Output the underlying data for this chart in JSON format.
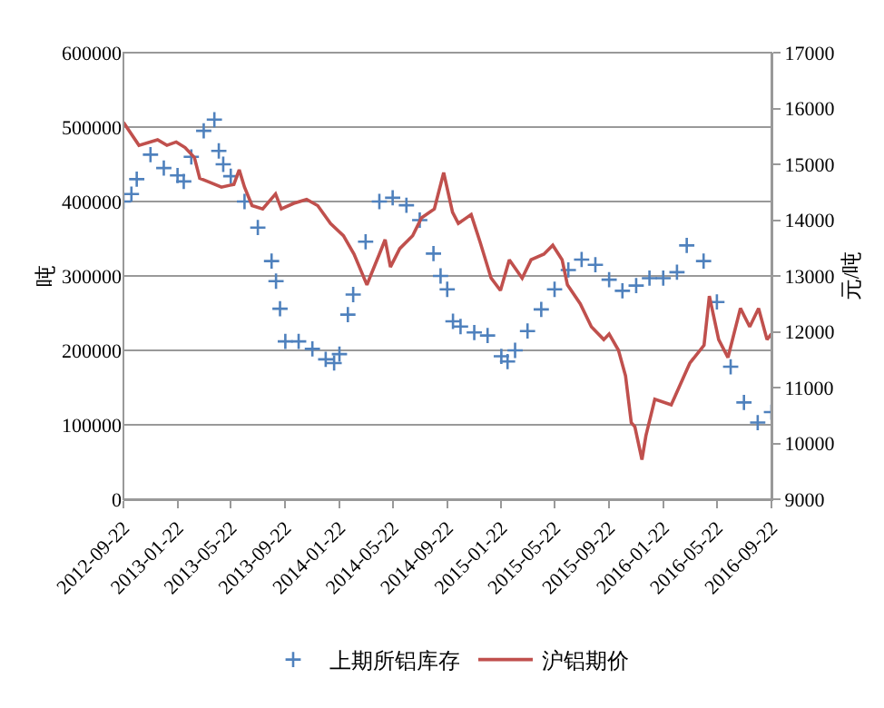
{
  "chart_data": {
    "type": "line",
    "ylabel": "吨",
    "y2label": "元/吨",
    "xlim": [
      "2012-09-22",
      "2016-09-22"
    ],
    "xticks": [
      {
        "value": "2012-09-22",
        "label": "2012-09-22"
      },
      {
        "value": "2013-01-22",
        "label": "2013-01-22"
      },
      {
        "value": "2013-05-22",
        "label": "2013-05-22"
      },
      {
        "value": "2013-09-22",
        "label": "2013-09-22"
      },
      {
        "value": "2014-01-22",
        "label": "2014-01-22"
      },
      {
        "value": "2014-05-22",
        "label": "2014-05-22"
      },
      {
        "value": "2014-09-22",
        "label": "2014-09-22"
      },
      {
        "value": "2015-01-22",
        "label": "2015-01-22"
      },
      {
        "value": "2015-05-22",
        "label": "2015-05-22"
      },
      {
        "value": "2015-09-22",
        "label": "2015-09-22"
      },
      {
        "value": "2016-01-22",
        "label": "2016-01-22"
      },
      {
        "value": "2016-05-22",
        "label": "2016-05-22"
      },
      {
        "value": "2016-09-22",
        "label": "2016-09-22"
      }
    ],
    "ylim": [
      0,
      600000
    ],
    "yticks": [
      0,
      100000,
      200000,
      300000,
      400000,
      500000,
      600000
    ],
    "y2lim": [
      9000,
      17000
    ],
    "y2ticks": [
      9000,
      10000,
      11000,
      12000,
      13000,
      14000,
      15000,
      16000,
      17000
    ],
    "grid": "y",
    "legend": "bottom",
    "series": [
      {
        "name": "上期所铝库存",
        "type": "scatter",
        "marker": "cross",
        "color": "#4f81bd",
        "x": [
          "2012-09-22",
          "2012-10-10",
          "2012-10-22",
          "2012-11-22",
          "2012-12-22",
          "2013-01-22",
          "2013-02-05",
          "2013-02-22",
          "2013-03-22",
          "2013-04-15",
          "2013-04-25",
          "2013-05-05",
          "2013-05-22",
          "2013-06-22",
          "2013-07-22",
          "2013-08-22",
          "2013-09-01",
          "2013-09-10",
          "2013-09-22",
          "2013-10-22",
          "2013-11-22",
          "2013-12-22",
          "2014-01-10",
          "2014-01-22",
          "2014-02-10",
          "2014-02-22",
          "2014-03-22",
          "2014-04-22",
          "2014-05-22",
          "2014-06-22",
          "2014-07-22",
          "2014-08-22",
          "2014-09-07",
          "2014-09-22",
          "2014-10-05",
          "2014-10-22",
          "2014-11-22",
          "2014-12-22",
          "2015-01-22",
          "2015-02-05",
          "2015-02-22",
          "2015-03-22",
          "2015-04-22",
          "2015-05-22",
          "2015-06-22",
          "2015-07-22",
          "2015-08-22",
          "2015-09-22",
          "2015-10-22",
          "2015-11-22",
          "2015-12-22",
          "2016-01-22",
          "2016-02-22",
          "2016-03-15",
          "2016-04-22",
          "2016-05-22",
          "2016-06-22",
          "2016-07-22",
          "2016-08-22",
          "2016-09-22"
        ],
        "values": [
          400000,
          410000,
          430000,
          463000,
          445000,
          435000,
          427000,
          460000,
          495000,
          510000,
          468000,
          450000,
          434000,
          400000,
          365000,
          320000,
          293000,
          256000,
          212000,
          212000,
          202000,
          188000,
          183000,
          195000,
          248000,
          275000,
          346000,
          400000,
          405000,
          395000,
          375000,
          330000,
          300000,
          282000,
          239000,
          232000,
          224000,
          220000,
          192000,
          185000,
          200000,
          226000,
          255000,
          282000,
          308000,
          322000,
          315000,
          295000,
          280000,
          287000,
          297000,
          297000,
          305000,
          341000,
          320000,
          265000,
          178000,
          130000,
          103000,
          117000
        ]
      },
      {
        "name": "沪铝期价",
        "axis": "y2",
        "marker": "none",
        "color": "#c0504d",
        "x": [
          "2012-09-22",
          "2012-10-27",
          "2012-12-08",
          "2012-12-29",
          "2013-01-19",
          "2013-02-08",
          "2013-03-01",
          "2013-03-13",
          "2013-04-01",
          "2013-05-01",
          "2013-05-29",
          "2013-06-10",
          "2013-06-22",
          "2013-07-09",
          "2013-08-02",
          "2013-08-31",
          "2013-09-13",
          "2013-10-11",
          "2013-11-09",
          "2013-12-04",
          "2014-01-02",
          "2014-01-31",
          "2014-02-24",
          "2014-03-25",
          "2014-04-02",
          "2014-04-22",
          "2014-05-05",
          "2014-05-17",
          "2014-06-07",
          "2014-07-06",
          "2014-07-26",
          "2014-08-24",
          "2014-09-14",
          "2014-10-04",
          "2014-10-17",
          "2014-11-15",
          "2014-12-05",
          "2014-12-30",
          "2015-01-20",
          "2015-02-09",
          "2015-03-10",
          "2015-03-30",
          "2015-04-28",
          "2015-05-18",
          "2015-06-08",
          "2015-06-20",
          "2015-07-19",
          "2015-08-13",
          "2015-09-10",
          "2015-09-22",
          "2015-10-13",
          "2015-10-29",
          "2015-11-11",
          "2015-11-19",
          "2015-12-05",
          "2015-12-14",
          "2016-01-03",
          "2016-02-09",
          "2016-03-22",
          "2016-04-23",
          "2016-05-05",
          "2016-05-26",
          "2016-06-16",
          "2016-07-14",
          "2016-08-04",
          "2016-08-24",
          "2016-09-12",
          "2016-09-22"
        ],
        "values": [
          15750,
          15340,
          15440,
          15340,
          15400,
          15300,
          15120,
          14750,
          14690,
          14590,
          14640,
          14900,
          14590,
          14260,
          14200,
          14470,
          14200,
          14300,
          14370,
          14260,
          13940,
          13720,
          13390,
          12840,
          13000,
          13390,
          13650,
          13160,
          13490,
          13720,
          14040,
          14200,
          14850,
          14140,
          13940,
          14100,
          13610,
          12960,
          12740,
          13290,
          12960,
          13290,
          13390,
          13550,
          13290,
          12840,
          12500,
          12090,
          11860,
          11960,
          11670,
          11210,
          10370,
          10300,
          9710,
          10140,
          10790,
          10690,
          11440,
          11760,
          12640,
          11860,
          11540,
          12420,
          12090,
          12420,
          11860,
          11960
        ]
      }
    ]
  }
}
